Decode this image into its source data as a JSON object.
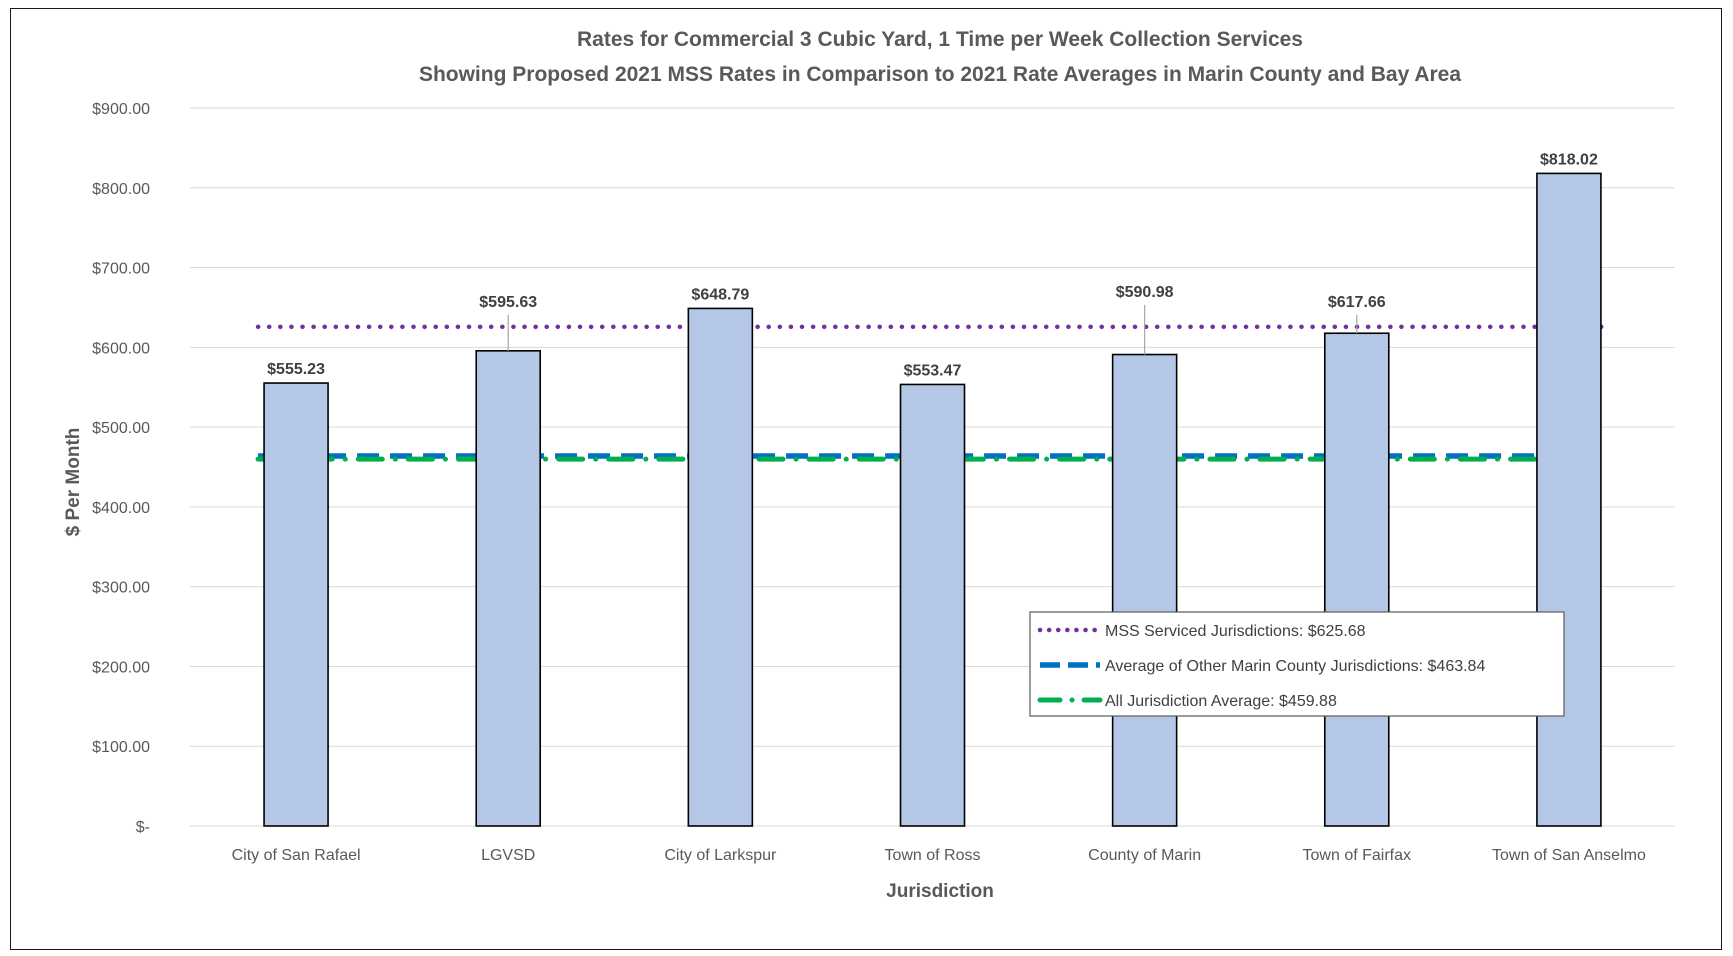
{
  "chart_data": {
    "type": "bar",
    "title_line1": "Rates for Commercial 3 Cubic Yard, 1 Time per Week Collection Services",
    "title_line2": "Showing Proposed  2021 MSS Rates in Comparison to 2021 Rate Averages in Marin County and Bay Area",
    "xlabel": "Jurisdiction",
    "ylabel": "$ Per Month",
    "ylim": [
      0,
      900
    ],
    "yticks": [
      {
        "value": 0,
        "label": "$-"
      },
      {
        "value": 100,
        "label": "$100.00"
      },
      {
        "value": 200,
        "label": "$200.00"
      },
      {
        "value": 300,
        "label": "$300.00"
      },
      {
        "value": 400,
        "label": "$400.00"
      },
      {
        "value": 500,
        "label": "$500.00"
      },
      {
        "value": 600,
        "label": "$600.00"
      },
      {
        "value": 700,
        "label": "$700.00"
      },
      {
        "value": 800,
        "label": "$800.00"
      },
      {
        "value": 900,
        "label": "$900.00"
      }
    ],
    "grid": true,
    "categories": [
      "City of San Rafael",
      "LGVSD",
      "City of Larkspur",
      "Town of Ross",
      "County of Marin",
      "Town of Fairfax",
      "Town of San Anselmo"
    ],
    "values": [
      555.23,
      595.63,
      648.79,
      553.47,
      590.98,
      617.66,
      818.02
    ],
    "data_labels": [
      "$555.23",
      "$595.63",
      "$648.79",
      "$553.47",
      "$590.98",
      "$617.66",
      "$818.02"
    ],
    "bar_color": "#b4c7e7",
    "reference_lines": [
      {
        "name": "MSS Serviced Jurisdictions: $625.68",
        "value": 625.68,
        "color": "#7030a0",
        "style": "dotted"
      },
      {
        "name": "Average of Other Marin County Jurisdictions: $463.84",
        "value": 463.84,
        "color": "#0070c0",
        "style": "dashed"
      },
      {
        "name": "All Jurisdiction Average: $459.88",
        "value": 459.88,
        "color": "#00b050",
        "style": "dash-dot"
      }
    ],
    "legend_position": "lower-right"
  }
}
